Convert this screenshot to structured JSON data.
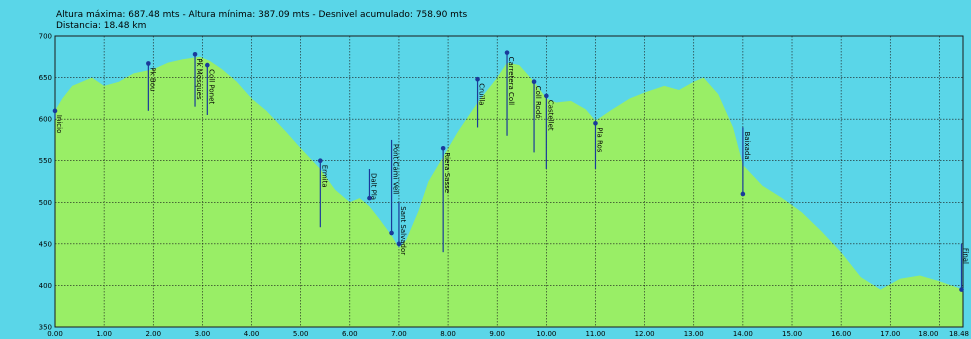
{
  "header": {
    "line1": "Altura máxima: 687.48 mts - Altura mínima: 387.09 mts - Desnivel acumulado: 758.90 mts",
    "line2": "Distancia: 18.48 km"
  },
  "chart_data": {
    "type": "area",
    "title": "",
    "xlabel": "",
    "ylabel": "",
    "xlim": [
      0,
      18.48
    ],
    "ylim": [
      350,
      700
    ],
    "grid": true,
    "colors": {
      "area": "#99ee66",
      "background": "#5ad6e8",
      "grid": "#1a1a1a",
      "marker": "#1a3a9a"
    },
    "y_ticks": [
      {
        "value": 350,
        "label": "350"
      },
      {
        "value": 400,
        "label": "400"
      },
      {
        "value": 450,
        "label": "450"
      },
      {
        "value": 500,
        "label": "500"
      },
      {
        "value": 550,
        "label": "550"
      },
      {
        "value": 600,
        "label": "600"
      },
      {
        "value": 650,
        "label": "650"
      },
      {
        "value": 700,
        "label": "700"
      }
    ],
    "x_ticks": [
      {
        "value": 0,
        "label": "0.00"
      },
      {
        "value": 1,
        "label": "1.00"
      },
      {
        "value": 2,
        "label": "2.00"
      },
      {
        "value": 3,
        "label": "3.00"
      },
      {
        "value": 4,
        "label": "4.00"
      },
      {
        "value": 5,
        "label": "5.00"
      },
      {
        "value": 6,
        "label": "6.00"
      },
      {
        "value": 7,
        "label": "7.00"
      },
      {
        "value": 8,
        "label": "8.00"
      },
      {
        "value": 9,
        "label": "9.00"
      },
      {
        "value": 10,
        "label": "10.00"
      },
      {
        "value": 11,
        "label": "11.00"
      },
      {
        "value": 12,
        "label": "12.00"
      },
      {
        "value": 13,
        "label": "13.00"
      },
      {
        "value": 14,
        "label": "14.00"
      },
      {
        "value": 15,
        "label": "15.00"
      },
      {
        "value": 16,
        "label": "16.00"
      },
      {
        "value": 17,
        "label": "17.00"
      },
      {
        "value": 18,
        "label": "18.00"
      },
      {
        "value": 18.48,
        "label": "18.48"
      }
    ],
    "profile": [
      {
        "x": 0.0,
        "y": 610
      },
      {
        "x": 0.15,
        "y": 625
      },
      {
        "x": 0.35,
        "y": 640
      },
      {
        "x": 0.55,
        "y": 645
      },
      {
        "x": 0.75,
        "y": 650
      },
      {
        "x": 1.0,
        "y": 640
      },
      {
        "x": 1.3,
        "y": 645
      },
      {
        "x": 1.6,
        "y": 655
      },
      {
        "x": 2.0,
        "y": 660
      },
      {
        "x": 2.3,
        "y": 668
      },
      {
        "x": 2.6,
        "y": 672
      },
      {
        "x": 2.95,
        "y": 675
      },
      {
        "x": 3.15,
        "y": 670
      },
      {
        "x": 3.4,
        "y": 660
      },
      {
        "x": 3.7,
        "y": 645
      },
      {
        "x": 4.0,
        "y": 625
      },
      {
        "x": 4.3,
        "y": 610
      },
      {
        "x": 4.7,
        "y": 585
      },
      {
        "x": 5.0,
        "y": 565
      },
      {
        "x": 5.4,
        "y": 540
      },
      {
        "x": 5.7,
        "y": 515
      },
      {
        "x": 6.0,
        "y": 500
      },
      {
        "x": 6.2,
        "y": 505
      },
      {
        "x": 6.4,
        "y": 495
      },
      {
        "x": 6.6,
        "y": 480
      },
      {
        "x": 6.85,
        "y": 460
      },
      {
        "x": 7.0,
        "y": 445
      },
      {
        "x": 7.15,
        "y": 455
      },
      {
        "x": 7.4,
        "y": 490
      },
      {
        "x": 7.6,
        "y": 525
      },
      {
        "x": 7.9,
        "y": 555
      },
      {
        "x": 8.2,
        "y": 585
      },
      {
        "x": 8.6,
        "y": 620
      },
      {
        "x": 9.0,
        "y": 650
      },
      {
        "x": 9.2,
        "y": 668
      },
      {
        "x": 9.45,
        "y": 665
      },
      {
        "x": 9.75,
        "y": 645
      },
      {
        "x": 10.0,
        "y": 625
      },
      {
        "x": 10.2,
        "y": 620
      },
      {
        "x": 10.5,
        "y": 622
      },
      {
        "x": 10.8,
        "y": 612
      },
      {
        "x": 11.0,
        "y": 598
      },
      {
        "x": 11.3,
        "y": 610
      },
      {
        "x": 11.7,
        "y": 625
      },
      {
        "x": 12.0,
        "y": 632
      },
      {
        "x": 12.4,
        "y": 640
      },
      {
        "x": 12.7,
        "y": 635
      },
      {
        "x": 13.0,
        "y": 645
      },
      {
        "x": 13.2,
        "y": 650
      },
      {
        "x": 13.5,
        "y": 630
      },
      {
        "x": 13.8,
        "y": 590
      },
      {
        "x": 14.0,
        "y": 545
      },
      {
        "x": 14.4,
        "y": 520
      },
      {
        "x": 14.8,
        "y": 505
      },
      {
        "x": 15.2,
        "y": 488
      },
      {
        "x": 15.6,
        "y": 465
      },
      {
        "x": 16.0,
        "y": 440
      },
      {
        "x": 16.4,
        "y": 410
      },
      {
        "x": 16.8,
        "y": 395
      },
      {
        "x": 17.2,
        "y": 408
      },
      {
        "x": 17.6,
        "y": 412
      },
      {
        "x": 18.0,
        "y": 405
      },
      {
        "x": 18.48,
        "y": 395
      }
    ],
    "waypoints": [
      {
        "x": 0.0,
        "y": 610,
        "label": "Inicio",
        "base": 600
      },
      {
        "x": 1.9,
        "y": 667,
        "label": "Pk Bou",
        "base": 610
      },
      {
        "x": 2.85,
        "y": 678,
        "label": "Pk Mosques",
        "base": 615
      },
      {
        "x": 3.1,
        "y": 665,
        "label": "Coll Ponet",
        "base": 605
      },
      {
        "x": 5.4,
        "y": 550,
        "label": "Ermita",
        "base": 470
      },
      {
        "x": 6.4,
        "y": 505,
        "label": "Dalt Pla",
        "base": 540
      },
      {
        "x": 6.85,
        "y": 463,
        "label": "Pont Camí Vell",
        "base": 575
      },
      {
        "x": 7.0,
        "y": 450,
        "label": "Sant Salvador",
        "base": 500
      },
      {
        "x": 7.9,
        "y": 565,
        "label": "Riera Sasse",
        "base": 440
      },
      {
        "x": 8.6,
        "y": 648,
        "label": "Cruïlla",
        "base": 590
      },
      {
        "x": 9.2,
        "y": 680,
        "label": "Carretera Coll",
        "base": 580
      },
      {
        "x": 9.75,
        "y": 645,
        "label": "Coll Rodó",
        "base": 560
      },
      {
        "x": 10.0,
        "y": 628,
        "label": "Castellet",
        "base": 540
      },
      {
        "x": 11.0,
        "y": 595,
        "label": "Pla Ros",
        "base": 540
      },
      {
        "x": 14.0,
        "y": 510,
        "label": "Baixada",
        "base": 590
      },
      {
        "x": 18.48,
        "y": 395,
        "label": "Final",
        "base": 450
      }
    ]
  }
}
